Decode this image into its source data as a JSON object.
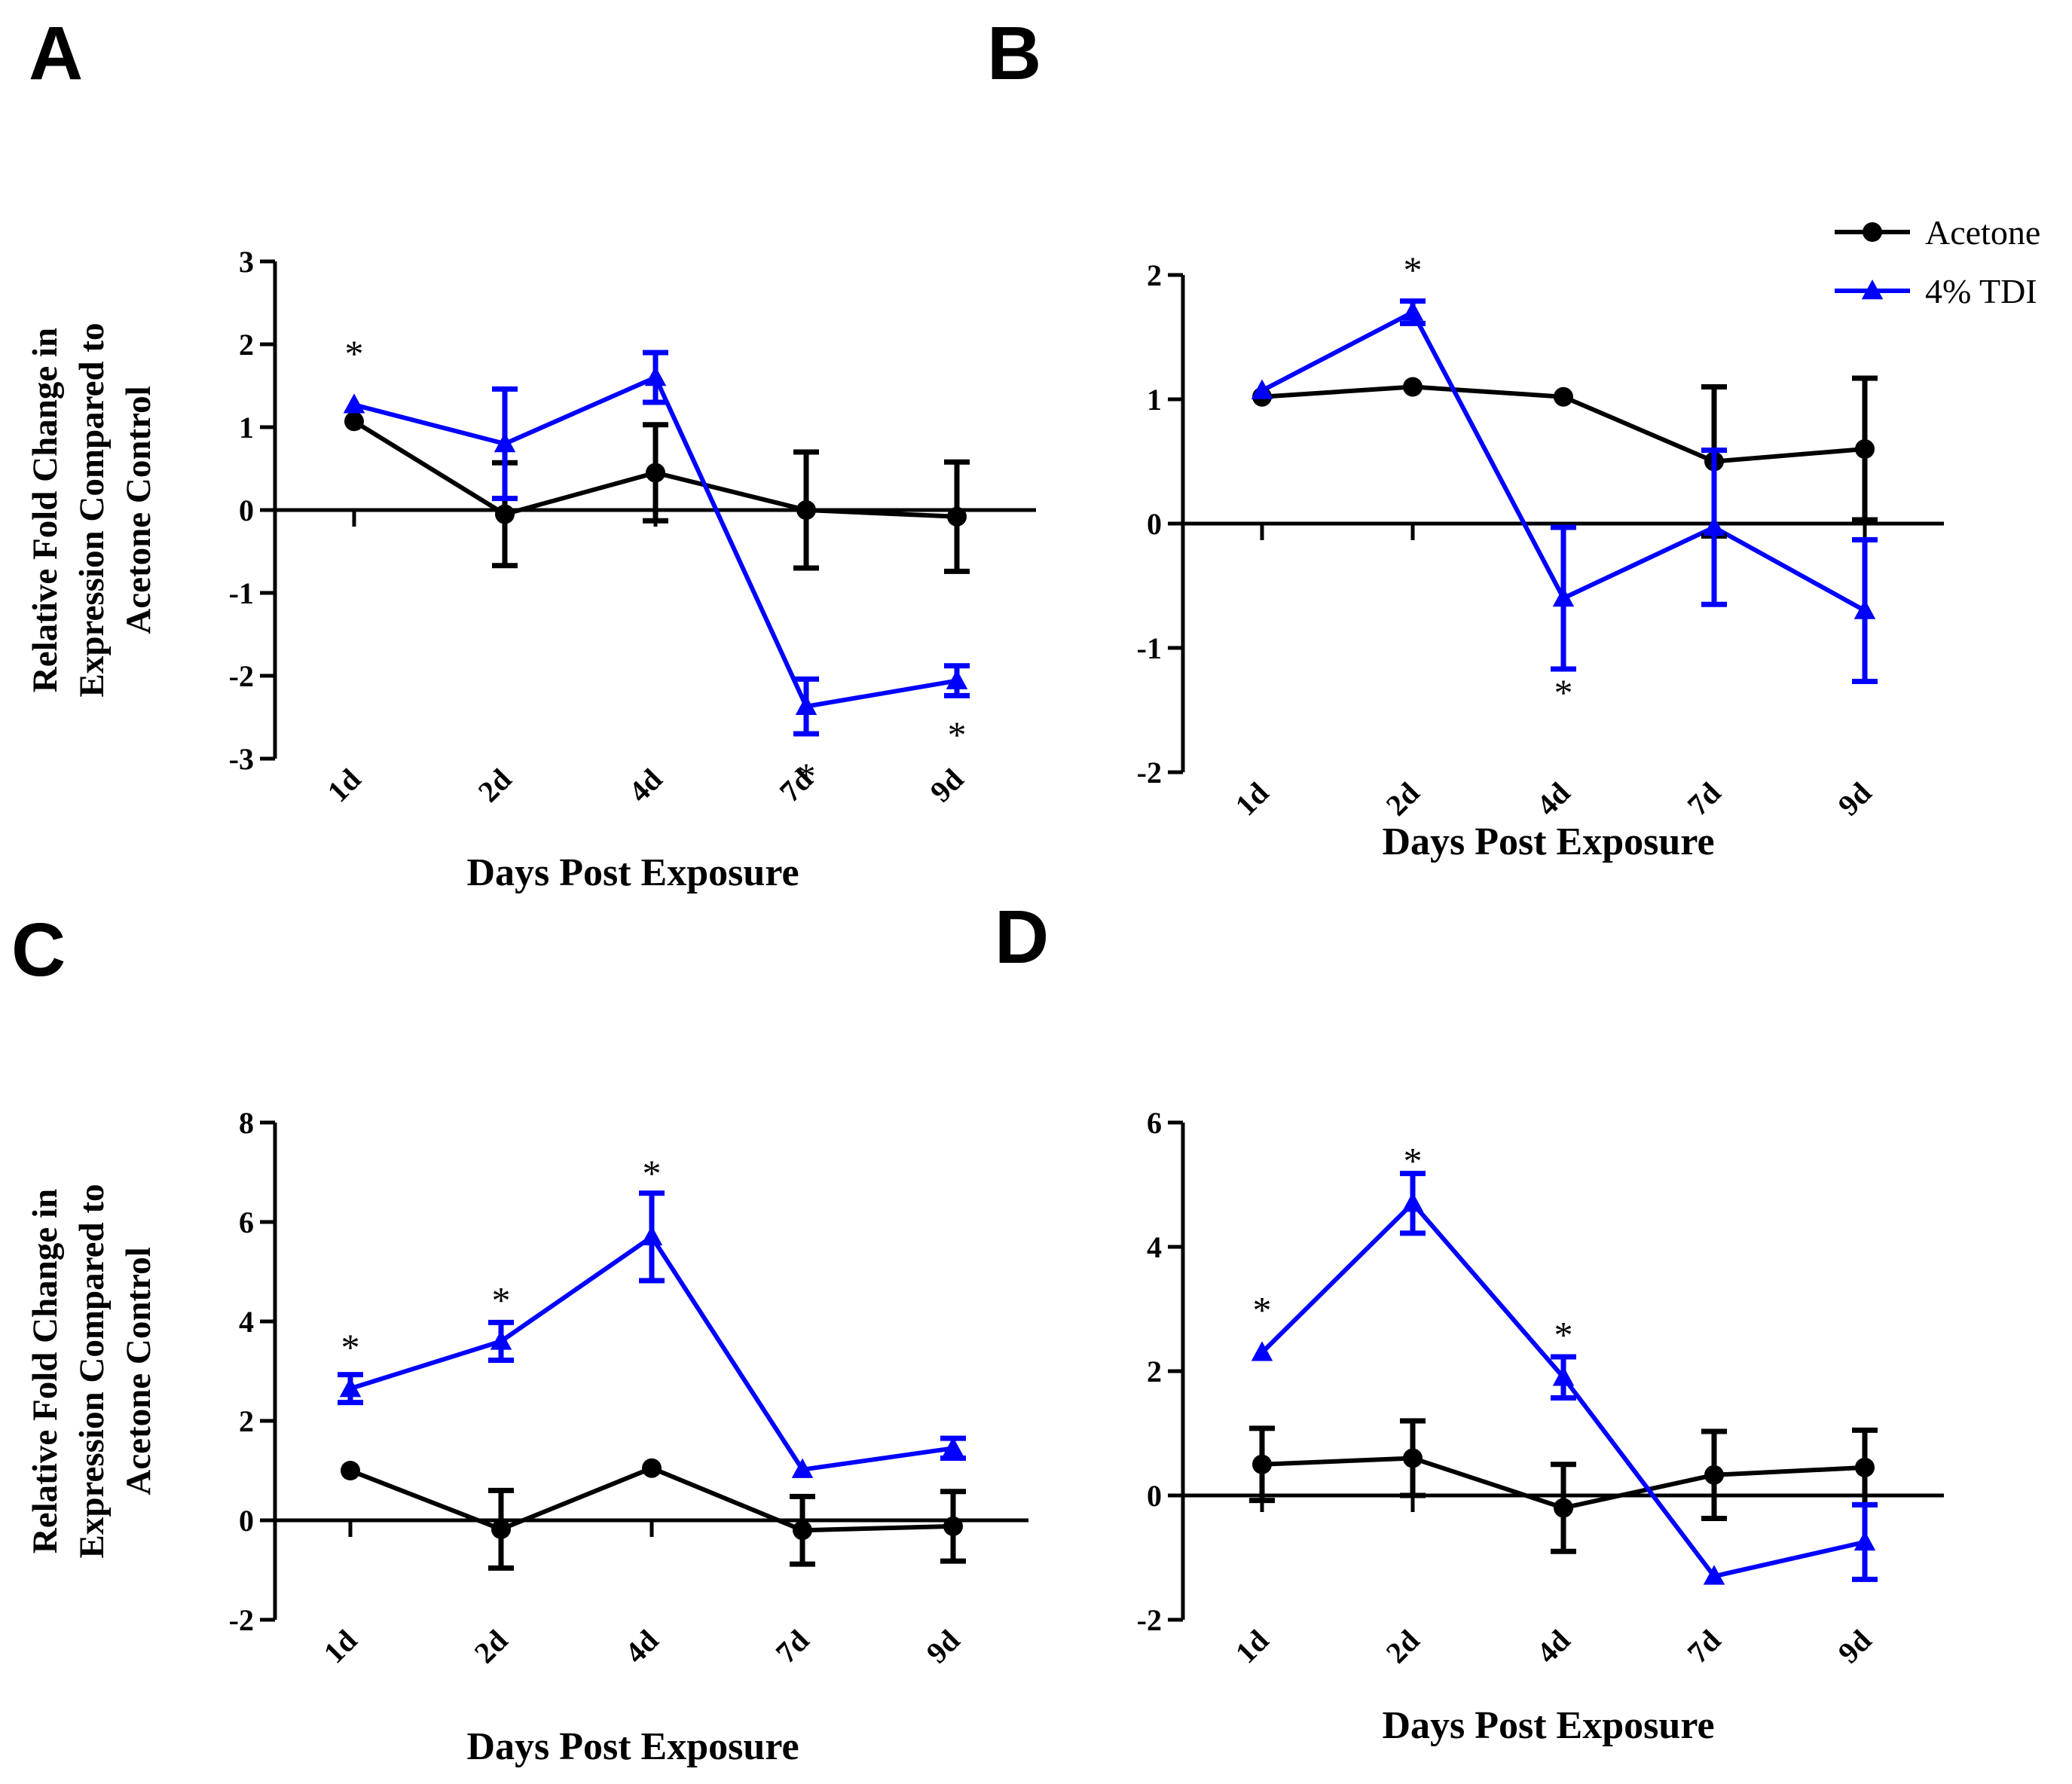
{
  "figure": {
    "panels": [
      {
        "id": "A",
        "label": "A"
      },
      {
        "id": "B",
        "label": "B"
      },
      {
        "id": "C",
        "label": "C"
      },
      {
        "id": "D",
        "label": "D"
      }
    ]
  },
  "legend": {
    "position": "top-right",
    "entries": [
      {
        "name": "Acetone",
        "color": "#000000",
        "marker": "circle"
      },
      {
        "name": "4% TDI",
        "color": "#0000ff",
        "marker": "triangle"
      }
    ]
  },
  "chart_data": [
    {
      "panel": "A",
      "type": "line",
      "title": "",
      "xlabel": "Days Post Exposure",
      "ylabel": [
        "Relative Fold Change in",
        "Expression Compared to",
        "Acetone Control"
      ],
      "categories": [
        "1d",
        "2d",
        "4d",
        "7d",
        "9d"
      ],
      "ylim": [
        -3,
        3
      ],
      "yticks": [
        3,
        2,
        1,
        0,
        -1,
        -2,
        -3
      ],
      "ytick_labels": [
        "3",
        "2",
        "1",
        "0",
        "-1",
        "-2",
        "-3"
      ],
      "series": [
        {
          "name": "Acetone",
          "color": "#000000",
          "marker": "circle",
          "values": [
            1.07,
            -0.05,
            0.45,
            0.0,
            -0.08
          ],
          "errors": [
            0.0,
            0.62,
            0.58,
            0.7,
            0.66
          ]
        },
        {
          "name": "4% TDI",
          "color": "#0000ff",
          "marker": "triangle",
          "values": [
            1.27,
            0.8,
            1.6,
            -2.37,
            -2.06
          ],
          "errors": [
            0.0,
            0.66,
            0.3,
            0.33,
            0.18
          ]
        }
      ],
      "significance": [
        {
          "category": "1d",
          "value": 1.9,
          "label": "*"
        },
        {
          "category": "7d",
          "value": -3.2,
          "label": "*"
        },
        {
          "category": "9d",
          "value": -2.7,
          "label": "*"
        }
      ]
    },
    {
      "panel": "B",
      "type": "line",
      "title": "",
      "xlabel": "Days Post Exposure",
      "ylabel": [],
      "categories": [
        "1d",
        "2d",
        "4d",
        "7d",
        "9d"
      ],
      "ylim": [
        -2,
        2
      ],
      "yticks": [
        2,
        1,
        0,
        -1,
        -2
      ],
      "ytick_labels": [
        "2",
        "1",
        "0",
        "-1",
        "-2"
      ],
      "series": [
        {
          "name": "Acetone",
          "color": "#000000",
          "marker": "circle",
          "values": [
            1.02,
            1.1,
            1.02,
            0.5,
            0.6
          ],
          "errors": [
            0.0,
            0.0,
            0.0,
            0.6,
            0.57
          ]
        },
        {
          "name": "4% TDI",
          "color": "#0000ff",
          "marker": "triangle",
          "values": [
            1.07,
            1.7,
            -0.6,
            -0.03,
            -0.7
          ],
          "errors": [
            0.0,
            0.09,
            0.57,
            0.62,
            0.57
          ]
        }
      ],
      "significance": [
        {
          "category": "2d",
          "value": 2.05,
          "label": "*"
        },
        {
          "category": "4d",
          "value": -1.35,
          "label": "*"
        }
      ]
    },
    {
      "panel": "C",
      "type": "line",
      "title": "",
      "xlabel": "Days Post Exposure",
      "ylabel": [
        "Relative Fold Change in",
        "Expression Compared to",
        "Acetone Control"
      ],
      "categories": [
        "1d",
        "2d",
        "4d",
        "7d",
        "9d"
      ],
      "ylim": [
        -2,
        8
      ],
      "yticks": [
        8,
        6,
        4,
        2,
        0,
        -2
      ],
      "ytick_labels": [
        "8",
        "6",
        "4",
        "2",
        "0",
        "-2"
      ],
      "series": [
        {
          "name": "Acetone",
          "color": "#000000",
          "marker": "circle",
          "values": [
            1.0,
            -0.18,
            1.05,
            -0.2,
            -0.12
          ],
          "errors": [
            0.0,
            0.78,
            0.0,
            0.68,
            0.7
          ]
        },
        {
          "name": "4% TDI",
          "color": "#0000ff",
          "marker": "triangle",
          "values": [
            2.65,
            3.6,
            5.7,
            1.02,
            1.45
          ],
          "errors": [
            0.28,
            0.38,
            0.88,
            0.0,
            0.2
          ]
        }
      ],
      "significance": [
        {
          "category": "1d",
          "value": 3.5,
          "label": "*"
        },
        {
          "category": "2d",
          "value": 4.45,
          "label": "*"
        },
        {
          "category": "4d",
          "value": 7.0,
          "label": "*"
        }
      ]
    },
    {
      "panel": "D",
      "type": "line",
      "title": "",
      "xlabel": "Days Post Exposure",
      "ylabel": [],
      "categories": [
        "1d",
        "2d",
        "4d",
        "7d",
        "9d"
      ],
      "ylim": [
        -2,
        6
      ],
      "yticks": [
        6,
        4,
        2,
        0,
        -2
      ],
      "ytick_labels": [
        "6",
        "4",
        "2",
        "0",
        "-2"
      ],
      "series": [
        {
          "name": "Acetone",
          "color": "#000000",
          "marker": "circle",
          "values": [
            0.5,
            0.6,
            -0.2,
            0.33,
            0.45
          ],
          "errors": [
            0.58,
            0.6,
            0.7,
            0.7,
            0.6
          ]
        },
        {
          "name": "4% TDI",
          "color": "#0000ff",
          "marker": "triangle",
          "values": [
            2.3,
            4.7,
            1.9,
            -1.3,
            -0.75
          ],
          "errors": [
            0.0,
            0.48,
            0.33,
            0.0,
            0.6
          ]
        }
      ],
      "significance": [
        {
          "category": "1d",
          "value": 3.0,
          "label": "*"
        },
        {
          "category": "2d",
          "value": 5.4,
          "label": "*"
        },
        {
          "category": "4d",
          "value": 2.6,
          "label": "*"
        }
      ]
    }
  ]
}
